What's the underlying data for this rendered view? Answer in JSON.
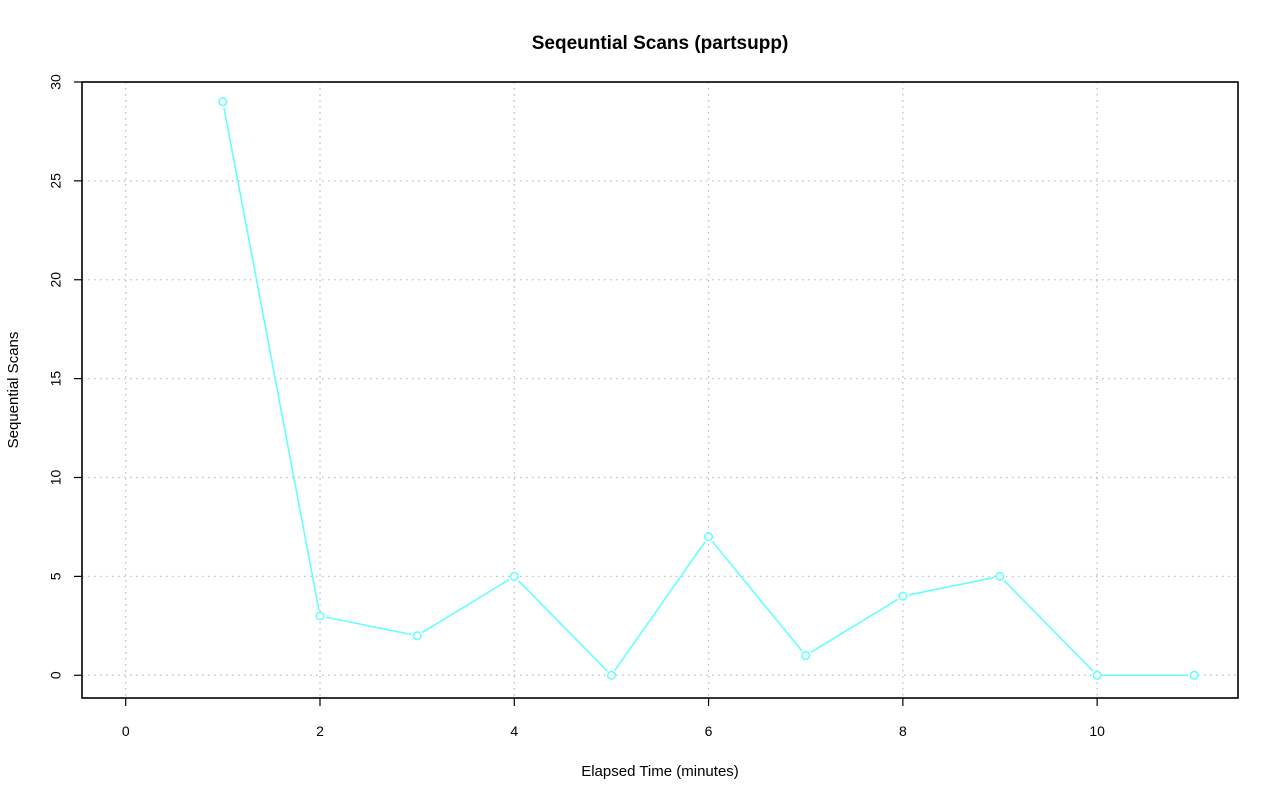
{
  "chart_data": {
    "type": "line",
    "title": "Seqeuntial Scans (partsupp)",
    "xlabel": "Elapsed Time (minutes)",
    "ylabel": "Sequential Scans",
    "xlim": [
      -0.45,
      11.45
    ],
    "ylim": [
      -1.15,
      30.0
    ],
    "x_ticks": [
      0,
      2,
      4,
      6,
      8,
      10
    ],
    "y_ticks": [
      0,
      5,
      10,
      15,
      20,
      25,
      30
    ],
    "x_tick_labels": [
      "0",
      "2",
      "4",
      "6",
      "8",
      "10"
    ],
    "y_tick_labels": [
      "0",
      "5",
      "10",
      "15",
      "20",
      "25",
      "30"
    ],
    "grid": true,
    "series_color": "#66ffff",
    "series": [
      {
        "x": [
          1,
          2,
          3,
          4,
          5,
          6,
          7,
          8,
          9,
          10,
          11
        ],
        "values": [
          29,
          3,
          2,
          5,
          0,
          7,
          1,
          4,
          5,
          0,
          0
        ]
      }
    ]
  }
}
